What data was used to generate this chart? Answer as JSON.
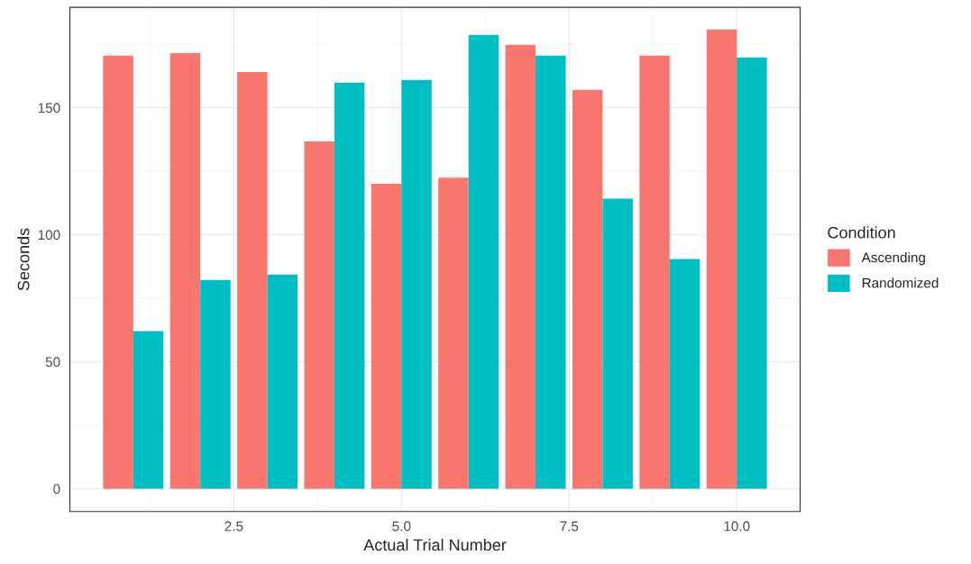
{
  "chart_data": {
    "type": "bar",
    "xlabel": "Actual Trial Number",
    "ylabel": "Seconds",
    "legend_title": "Condition",
    "legend": "right",
    "grid": true,
    "x": [
      1,
      2,
      3,
      4,
      5,
      6,
      7,
      8,
      9,
      10
    ],
    "series": [
      {
        "name": "Ascending",
        "color": "#f8766d",
        "values": [
          170.5,
          171.5,
          164,
          136.7,
          120,
          122.4,
          174.7,
          157,
          170.5,
          180.8
        ]
      },
      {
        "name": "Randomized",
        "color": "#00bfc4",
        "values": [
          62,
          82.2,
          84.3,
          159.8,
          160.9,
          178.6,
          170.5,
          114.2,
          90.4,
          169.8
        ]
      }
    ],
    "xlim": [
      0.055,
      10.945
    ],
    "xticks": [
      {
        "value": 2.5,
        "label": "2.5"
      },
      {
        "value": 5,
        "label": "5.0"
      },
      {
        "value": 7.5,
        "label": "7.5"
      },
      {
        "value": 10,
        "label": "10.0"
      }
    ],
    "ylim": [
      -9,
      189.5
    ],
    "yticks": [
      0,
      50,
      100,
      150
    ]
  }
}
